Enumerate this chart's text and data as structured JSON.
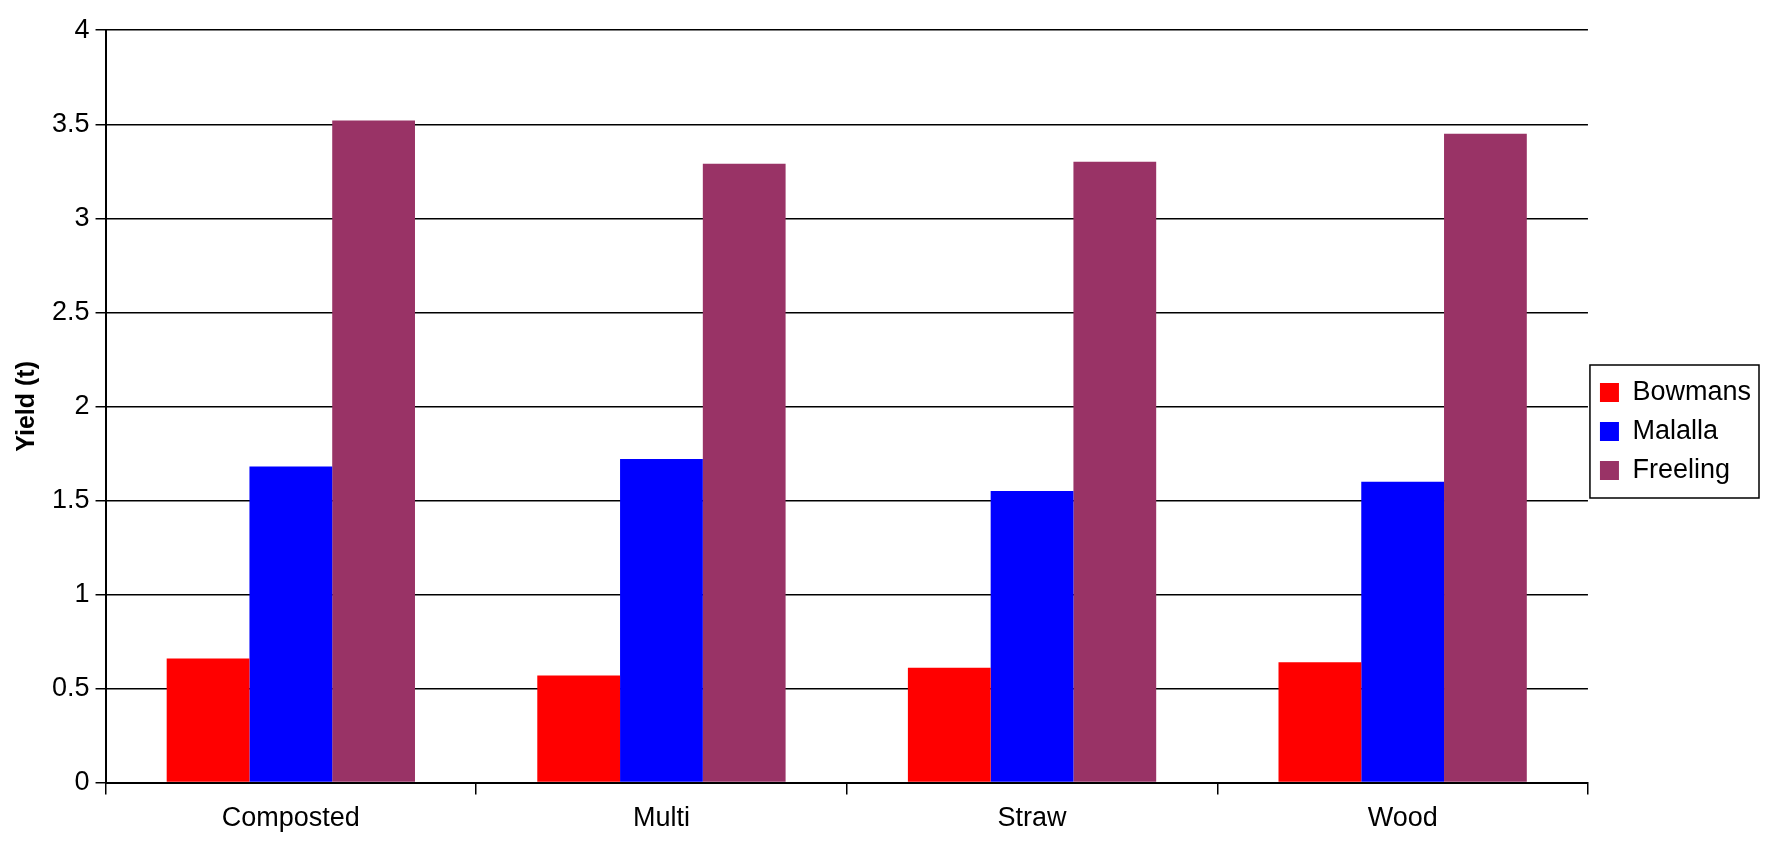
{
  "chart_data": {
    "type": "bar",
    "ylabel": "Yield (t)",
    "categories": [
      "Composted",
      "Multi",
      "Straw",
      "Wood"
    ],
    "series": [
      {
        "name": "Bowmans",
        "color": "#ff0000",
        "values": [
          0.66,
          0.57,
          0.61,
          0.64
        ]
      },
      {
        "name": "Malalla",
        "color": "#0000ff",
        "values": [
          1.68,
          1.72,
          1.55,
          1.6
        ]
      },
      {
        "name": "Freeling",
        "color": "#993366",
        "values": [
          3.52,
          3.29,
          3.3,
          3.45
        ]
      }
    ],
    "ylim": [
      0,
      4
    ],
    "yticks": [
      0,
      0.5,
      1,
      1.5,
      2,
      2.5,
      3,
      3.5,
      4
    ],
    "grid": "y",
    "legend": "right"
  }
}
